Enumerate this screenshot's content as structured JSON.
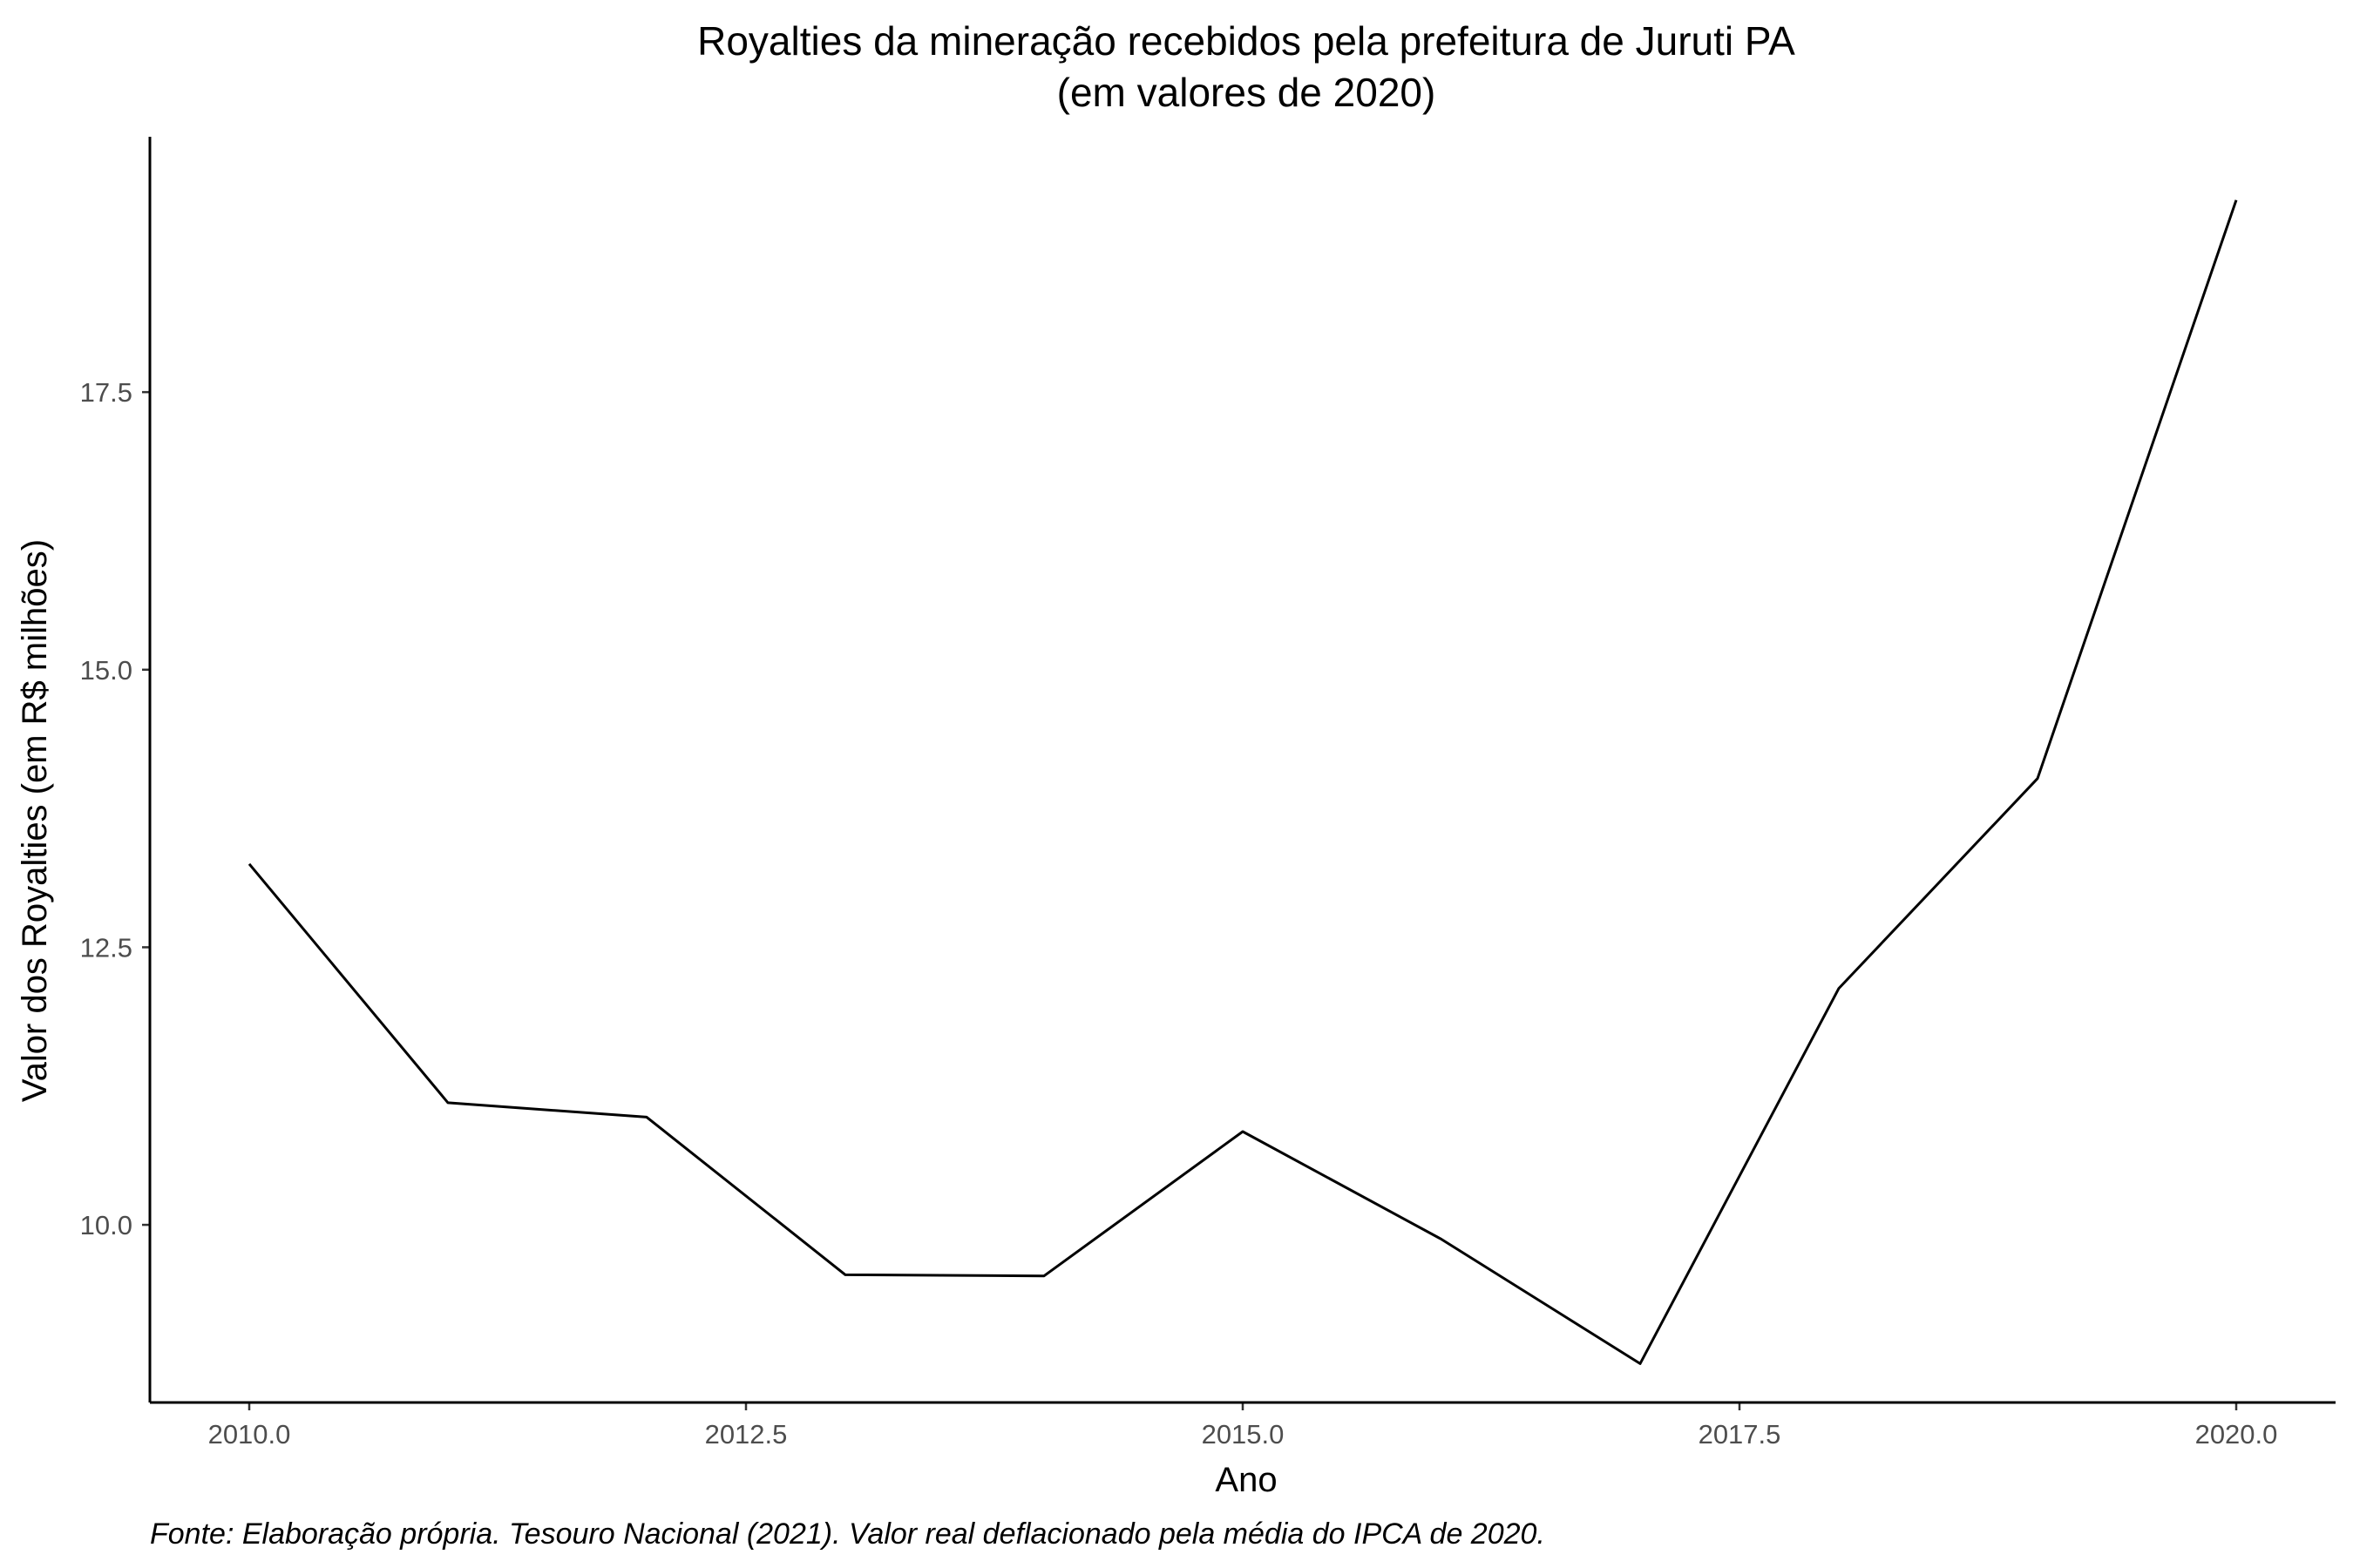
{
  "chart_data": {
    "type": "line",
    "title": "Royalties da mineração recebidos pela prefeitura de Juruti PA",
    "subtitle": "(em valores de 2020)",
    "xlabel": "Ano",
    "ylabel": "Valor dos Royalties (em R$ milhões)",
    "caption": "Fonte: Elaboração própria. Tesouro Nacional (2021). Valor real deflacionado pela média do IPCA de 2020.",
    "x": [
      2010,
      2011,
      2012,
      2013,
      2014,
      2015,
      2016,
      2017,
      2018,
      2019,
      2020
    ],
    "series": [
      {
        "values": [
          13.25,
          11.1,
          10.97,
          9.55,
          9.54,
          10.84,
          9.87,
          8.75,
          12.13,
          14.02,
          19.23
        ]
      }
    ],
    "xlim": [
      2009.5,
      2020.5
    ],
    "ylim": [
      8.4,
      19.8
    ],
    "x_ticks": [
      2010.0,
      2012.5,
      2015.0,
      2017.5,
      2020.0
    ],
    "x_tick_labels": [
      "2010.0",
      "2012.5",
      "2015.0",
      "2017.5",
      "2020.0"
    ],
    "y_ticks": [
      10.0,
      12.5,
      15.0,
      17.5
    ],
    "y_tick_labels": [
      "10.0",
      "12.5",
      "15.0",
      "17.5"
    ],
    "grid": false,
    "line_color": "#000000",
    "tick_label_color": "#4d4d4d"
  }
}
